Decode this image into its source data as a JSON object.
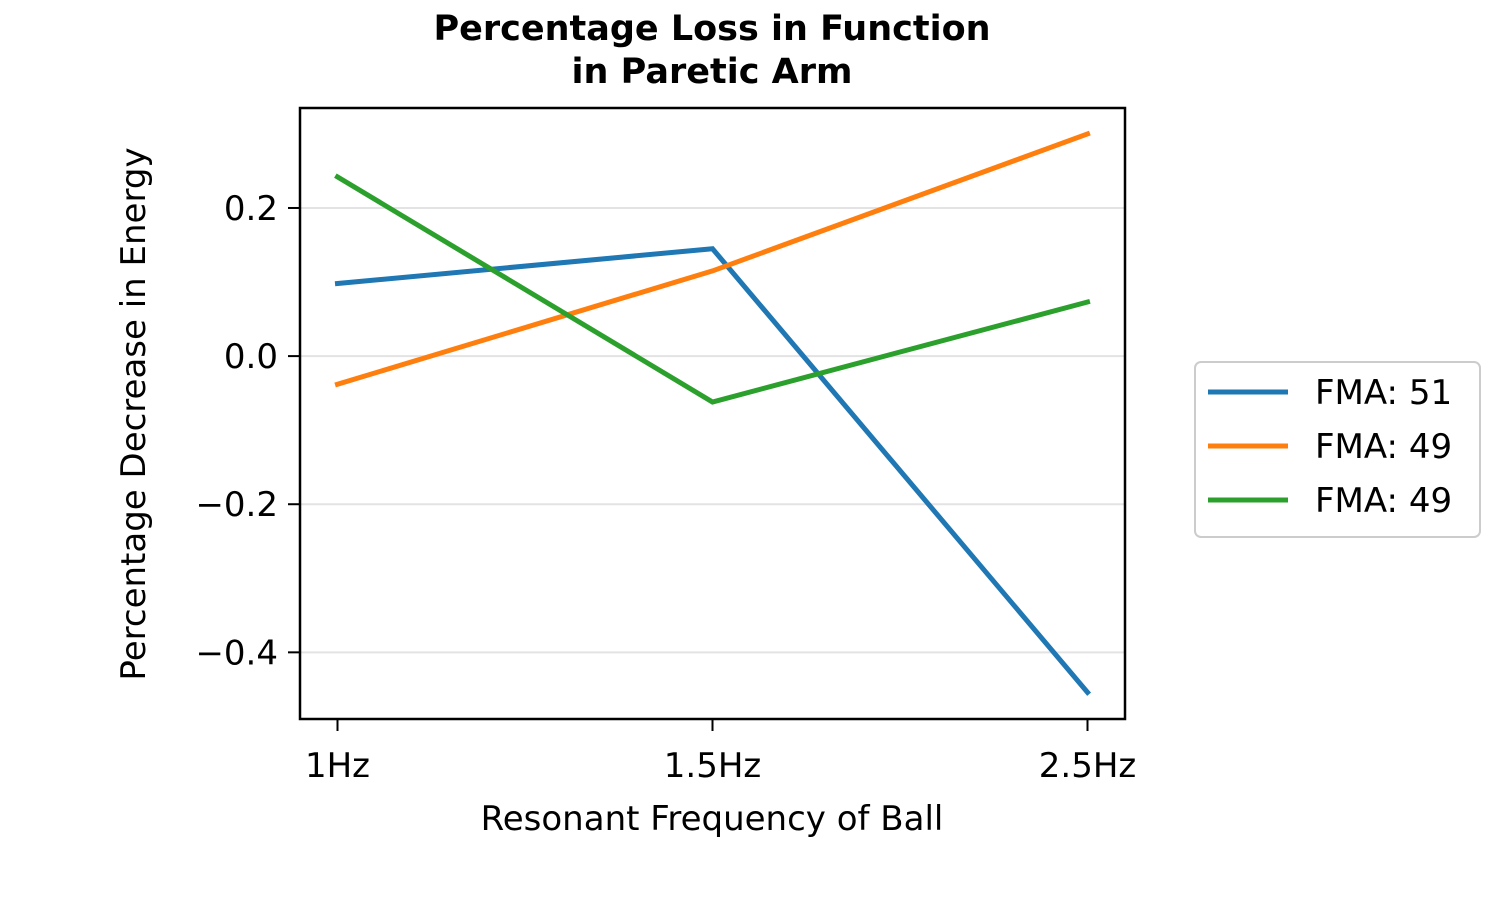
{
  "chart_data": {
    "type": "line",
    "title": [
      "Percentage Loss in Function",
      "in Paretic Arm"
    ],
    "xlabel": "Resonant Frequency of Ball",
    "ylabel": "Percentage Decrease in Energy",
    "categories": [
      "1Hz",
      "1.5Hz",
      "2.5Hz"
    ],
    "yticks": [
      -0.4,
      -0.2,
      0.0,
      0.2
    ],
    "ytick_labels": [
      "−0.4",
      "−0.2",
      "0.0",
      "0.2"
    ],
    "ylim": [
      -0.49,
      0.335
    ],
    "grid": "horizontal",
    "legend_position": "right",
    "series": [
      {
        "name": "FMA: 51",
        "color": "#1f77b4",
        "values": [
          0.098,
          0.145,
          -0.454
        ]
      },
      {
        "name": "FMA: 49",
        "color": "#ff7f0e",
        "values": [
          -0.038,
          0.115,
          0.3
        ]
      },
      {
        "name": "FMA: 49",
        "color": "#2ca02c",
        "values": [
          0.242,
          -0.062,
          0.073
        ]
      }
    ]
  }
}
